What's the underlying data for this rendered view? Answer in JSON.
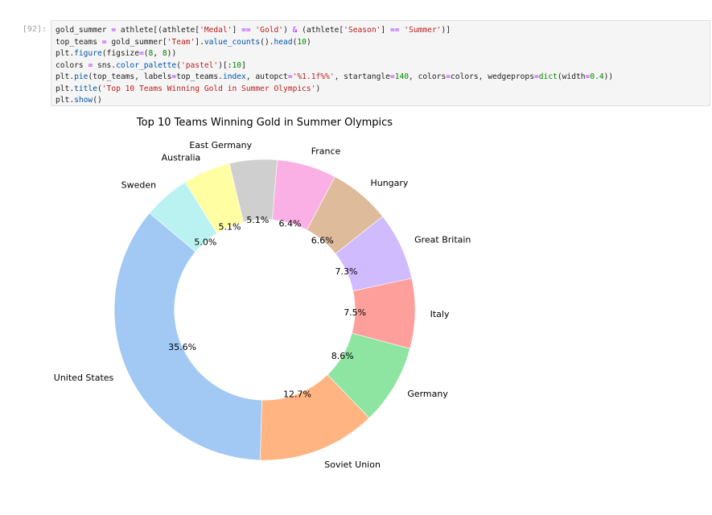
{
  "cell": {
    "prompt": "[92]:",
    "lines": [
      [
        [
          "",
          "gold_summer "
        ],
        [
          "o",
          "="
        ],
        [
          "",
          " athlete[(athlete["
        ],
        [
          "s",
          "'Medal'"
        ],
        [
          "",
          "] "
        ],
        [
          "o",
          "=="
        ],
        [
          "",
          " "
        ],
        [
          "s",
          "'Gold'"
        ],
        [
          "",
          ") "
        ],
        [
          "o",
          "&"
        ],
        [
          "",
          " (athlete["
        ],
        [
          "s",
          "'Season'"
        ],
        [
          "",
          "] "
        ],
        [
          "o",
          "=="
        ],
        [
          "",
          " "
        ],
        [
          "s",
          "'Summer'"
        ],
        [
          "",
          ")]"
        ]
      ],
      [
        [
          "",
          "top_teams "
        ],
        [
          "o",
          "="
        ],
        [
          "",
          " gold_summer["
        ],
        [
          "s",
          "'Team'"
        ],
        [
          "",
          "]."
        ],
        [
          "f",
          "value_counts"
        ],
        [
          "",
          "()."
        ],
        [
          "f",
          "head"
        ],
        [
          "",
          "("
        ],
        [
          "n",
          "10"
        ],
        [
          "",
          ")"
        ]
      ],
      [
        [
          "",
          "plt."
        ],
        [
          "f",
          "figure"
        ],
        [
          "",
          "(figsize"
        ],
        [
          "o",
          "="
        ],
        [
          "",
          "("
        ],
        [
          "n",
          "8"
        ],
        [
          "",
          ", "
        ],
        [
          "n",
          "8"
        ],
        [
          "",
          "))"
        ]
      ],
      [
        [
          "",
          "colors "
        ],
        [
          "o",
          "="
        ],
        [
          "",
          " sns."
        ],
        [
          "f",
          "color_palette"
        ],
        [
          "",
          "("
        ],
        [
          "s",
          "'pastel'"
        ],
        [
          "",
          ")[:"
        ],
        [
          "n",
          "10"
        ],
        [
          "",
          "]"
        ]
      ],
      [
        [
          "",
          "plt."
        ],
        [
          "f",
          "pie"
        ],
        [
          "",
          "(top_teams, labels"
        ],
        [
          "o",
          "="
        ],
        [
          "",
          "top_teams."
        ],
        [
          "f",
          "index"
        ],
        [
          "",
          ", autopct"
        ],
        [
          "o",
          "="
        ],
        [
          "s",
          "'%1.1f%%'"
        ],
        [
          "",
          ", startangle"
        ],
        [
          "o",
          "="
        ],
        [
          "n",
          "140"
        ],
        [
          "",
          ", colors"
        ],
        [
          "o",
          "="
        ],
        [
          "",
          "colors, wedgeprops"
        ],
        [
          "o",
          "="
        ],
        [
          "n",
          "dict"
        ],
        [
          "",
          "(width"
        ],
        [
          "o",
          "="
        ],
        [
          "n",
          "0.4"
        ],
        [
          "",
          "))"
        ]
      ],
      [
        [
          "",
          "plt."
        ],
        [
          "f",
          "title"
        ],
        [
          "",
          "("
        ],
        [
          "s",
          "'Top 10 Teams Winning Gold in Summer Olympics'"
        ],
        [
          "",
          ")"
        ]
      ],
      [
        [
          "",
          "plt."
        ],
        [
          "f",
          "show"
        ],
        [
          "",
          "()"
        ]
      ]
    ]
  },
  "chart_data": {
    "type": "pie",
    "title": "Top 10 Teams Winning Gold in Summer Olympics",
    "donut_width": 0.4,
    "start_angle": 140,
    "categories": [
      "United States",
      "Soviet Union",
      "Germany",
      "Italy",
      "Great Britain",
      "Hungary",
      "France",
      "East Germany",
      "Australia",
      "Sweden"
    ],
    "values": [
      35.6,
      12.7,
      8.6,
      7.5,
      7.3,
      6.6,
      6.4,
      5.1,
      5.1,
      5.0
    ],
    "labels": [
      "35.6%",
      "12.7%",
      "8.6%",
      "7.5%",
      "7.3%",
      "6.6%",
      "6.4%",
      "5.1%",
      "5.1%",
      "5.0%"
    ],
    "colors": [
      "#a1c9f4",
      "#ffb482",
      "#8de5a1",
      "#ff9f9b",
      "#d0bbff",
      "#debb9b",
      "#fab0e4",
      "#cfcfcf",
      "#fffea3",
      "#b9f2f0"
    ]
  }
}
